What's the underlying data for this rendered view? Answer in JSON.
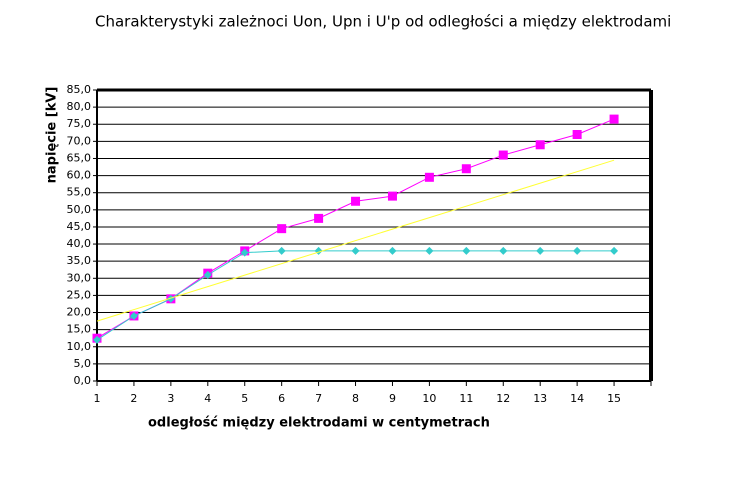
{
  "chart_data": {
    "type": "line",
    "title": "Charakterystyki zależnoci Uon, Upn i U'p od odległości a między elektrodami",
    "x_label": "odległość między elektrodami w centymetrach",
    "y_label": "napięcie [kV]",
    "x": [
      1,
      2,
      3,
      4,
      5,
      6,
      7,
      8,
      9,
      10,
      11,
      12,
      13,
      14,
      15
    ],
    "xlim": [
      1,
      16
    ],
    "xticks": [
      1,
      2,
      3,
      4,
      5,
      6,
      7,
      8,
      9,
      10,
      11,
      12,
      13,
      14,
      15
    ],
    "ylim": [
      0,
      85
    ],
    "yticks": [
      {
        "value": 0,
        "label": "0,0"
      },
      {
        "value": 5,
        "label": "5,0"
      },
      {
        "value": 10,
        "label": "10,0"
      },
      {
        "value": 15,
        "label": "15,0"
      },
      {
        "value": 20,
        "label": "20,0"
      },
      {
        "value": 25,
        "label": "25,0"
      },
      {
        "value": 30,
        "label": "30,0"
      },
      {
        "value": 35,
        "label": "35,0"
      },
      {
        "value": 40,
        "label": "40,0"
      },
      {
        "value": 45,
        "label": "45,0"
      },
      {
        "value": 50,
        "label": "50,0"
      },
      {
        "value": 55,
        "label": "55,0"
      },
      {
        "value": 60,
        "label": "60,0"
      },
      {
        "value": 65,
        "label": "65,0"
      },
      {
        "value": 70,
        "label": "70,0"
      },
      {
        "value": 75,
        "label": "75,0"
      },
      {
        "value": 80,
        "label": "80,0"
      },
      {
        "value": 85,
        "label": "85,0"
      }
    ],
    "grid": true,
    "series": [
      {
        "color": "#ff00ff",
        "marker": "square",
        "values": [
          12.5,
          19,
          24,
          31.5,
          38,
          44.5,
          47.5,
          52.5,
          54,
          59.5,
          62,
          66,
          69,
          72,
          76.5
        ]
      },
      {
        "color": "#33cccc",
        "marker": "diamond",
        "values": [
          12,
          19,
          24,
          31,
          37.5,
          38,
          38,
          38,
          38,
          38,
          38,
          38,
          38,
          38,
          38
        ]
      },
      {
        "color": "#ffff33",
        "marker": "none",
        "values": [
          17.5,
          null,
          null,
          null,
          null,
          null,
          null,
          null,
          null,
          null,
          null,
          null,
          null,
          null,
          64.5
        ]
      }
    ]
  }
}
